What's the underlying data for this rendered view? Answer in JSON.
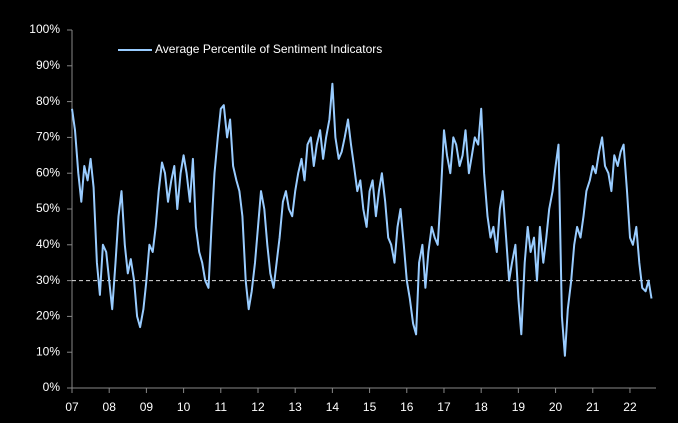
{
  "chart_data": {
    "type": "line",
    "series": [
      {
        "name": "Average Percentile of Sentiment Indicators",
        "color": "#99ccff",
        "values": [
          78,
          72,
          60,
          52,
          62,
          58,
          64,
          56,
          35,
          26,
          40,
          38,
          30,
          22,
          35,
          48,
          55,
          40,
          32,
          36,
          30,
          20,
          17,
          22,
          30,
          40,
          38,
          45,
          55,
          63,
          60,
          52,
          58,
          62,
          50,
          60,
          65,
          60,
          52,
          64,
          45,
          38,
          35,
          30,
          28,
          45,
          60,
          70,
          78,
          79,
          70,
          75,
          62,
          58,
          55,
          48,
          30,
          22,
          27,
          35,
          45,
          55,
          50,
          40,
          32,
          28,
          35,
          42,
          52,
          55,
          50,
          48,
          55,
          60,
          64,
          58,
          68,
          70,
          62,
          68,
          72,
          64,
          70,
          75,
          85,
          70,
          64,
          66,
          70,
          75,
          68,
          62,
          55,
          58,
          50,
          45,
          55,
          58,
          48,
          55,
          60,
          52,
          42,
          40,
          35,
          45,
          50,
          40,
          30,
          25,
          18,
          15,
          35,
          40,
          28,
          38,
          45,
          42,
          40,
          55,
          72,
          65,
          60,
          70,
          68,
          62,
          65,
          72,
          60,
          65,
          70,
          68,
          78,
          60,
          48,
          42,
          45,
          38,
          50,
          55,
          42,
          30,
          35,
          40,
          25,
          15,
          35,
          45,
          38,
          42,
          30,
          45,
          35,
          42,
          50,
          55,
          62,
          68,
          20,
          9,
          22,
          30,
          40,
          45,
          42,
          48,
          55,
          58,
          62,
          60,
          66,
          70,
          62,
          60,
          55,
          65,
          62,
          66,
          68,
          55,
          42,
          40,
          45,
          35,
          28,
          27,
          30,
          25
        ]
      }
    ],
    "x": [
      2007.0,
      2007.08,
      2007.17,
      2007.25,
      2007.33,
      2007.42,
      2007.5,
      2007.58,
      2007.67,
      2007.75,
      2007.83,
      2007.92,
      2008.0,
      2008.08,
      2008.17,
      2008.25,
      2008.33,
      2008.42,
      2008.5,
      2008.58,
      2008.67,
      2008.75,
      2008.83,
      2008.92,
      2009.0,
      2009.08,
      2009.17,
      2009.25,
      2009.33,
      2009.42,
      2009.5,
      2009.58,
      2009.67,
      2009.75,
      2009.83,
      2009.92,
      2010.0,
      2010.08,
      2010.17,
      2010.25,
      2010.33,
      2010.42,
      2010.5,
      2010.58,
      2010.67,
      2010.75,
      2010.83,
      2010.92,
      2011.0,
      2011.08,
      2011.17,
      2011.25,
      2011.33,
      2011.42,
      2011.5,
      2011.58,
      2011.67,
      2011.75,
      2011.83,
      2011.92,
      2012.0,
      2012.08,
      2012.17,
      2012.25,
      2012.33,
      2012.42,
      2012.5,
      2012.58,
      2012.67,
      2012.75,
      2012.83,
      2012.92,
      2013.0,
      2013.08,
      2013.17,
      2013.25,
      2013.33,
      2013.42,
      2013.5,
      2013.58,
      2013.67,
      2013.75,
      2013.83,
      2013.92,
      2014.0,
      2014.08,
      2014.17,
      2014.25,
      2014.33,
      2014.42,
      2014.5,
      2014.58,
      2014.67,
      2014.75,
      2014.83,
      2014.92,
      2015.0,
      2015.08,
      2015.17,
      2015.25,
      2015.33,
      2015.42,
      2015.5,
      2015.58,
      2015.67,
      2015.75,
      2015.83,
      2015.92,
      2016.0,
      2016.08,
      2016.17,
      2016.25,
      2016.33,
      2016.42,
      2016.5,
      2016.58,
      2016.67,
      2016.75,
      2016.83,
      2016.92,
      2017.0,
      2017.08,
      2017.17,
      2017.25,
      2017.33,
      2017.42,
      2017.5,
      2017.58,
      2017.67,
      2017.75,
      2017.83,
      2017.92,
      2018.0,
      2018.08,
      2018.17,
      2018.25,
      2018.33,
      2018.42,
      2018.5,
      2018.58,
      2018.67,
      2018.75,
      2018.83,
      2018.92,
      2019.0,
      2019.08,
      2019.17,
      2019.25,
      2019.33,
      2019.42,
      2019.5,
      2019.58,
      2019.67,
      2019.75,
      2019.83,
      2019.92,
      2020.0,
      2020.08,
      2020.17,
      2020.25,
      2020.33,
      2020.42,
      2020.5,
      2020.58,
      2020.67,
      2020.75,
      2020.83,
      2020.92,
      2021.0,
      2021.08,
      2021.17,
      2021.25,
      2021.33,
      2021.42,
      2021.5,
      2021.58,
      2021.67,
      2021.75,
      2021.83,
      2021.92,
      2022.0,
      2022.08,
      2022.17,
      2022.25,
      2022.33,
      2022.42,
      2022.5,
      2022.58
    ],
    "xlim": [
      2007,
      2022.7
    ],
    "xticks": [
      {
        "value": 2007,
        "label": "07"
      },
      {
        "value": 2008,
        "label": "08"
      },
      {
        "value": 2009,
        "label": "09"
      },
      {
        "value": 2010,
        "label": "10"
      },
      {
        "value": 2011,
        "label": "11"
      },
      {
        "value": 2012,
        "label": "12"
      },
      {
        "value": 2013,
        "label": "13"
      },
      {
        "value": 2014,
        "label": "14"
      },
      {
        "value": 2015,
        "label": "15"
      },
      {
        "value": 2016,
        "label": "16"
      },
      {
        "value": 2017,
        "label": "17"
      },
      {
        "value": 2018,
        "label": "18"
      },
      {
        "value": 2019,
        "label": "19"
      },
      {
        "value": 2020,
        "label": "20"
      },
      {
        "value": 2021,
        "label": "21"
      },
      {
        "value": 2022,
        "label": "22"
      }
    ],
    "ylim": [
      0,
      100
    ],
    "yticks": [
      {
        "value": 0,
        "label": "0%"
      },
      {
        "value": 10,
        "label": "10%"
      },
      {
        "value": 20,
        "label": "20%"
      },
      {
        "value": 30,
        "label": "30%"
      },
      {
        "value": 40,
        "label": "40%"
      },
      {
        "value": 50,
        "label": "50%"
      },
      {
        "value": 60,
        "label": "60%"
      },
      {
        "value": 70,
        "label": "70%"
      },
      {
        "value": 80,
        "label": "80%"
      },
      {
        "value": 90,
        "label": "90%"
      },
      {
        "value": 100,
        "label": "100%"
      }
    ],
    "reference_line": 30,
    "legend": "top-left"
  }
}
